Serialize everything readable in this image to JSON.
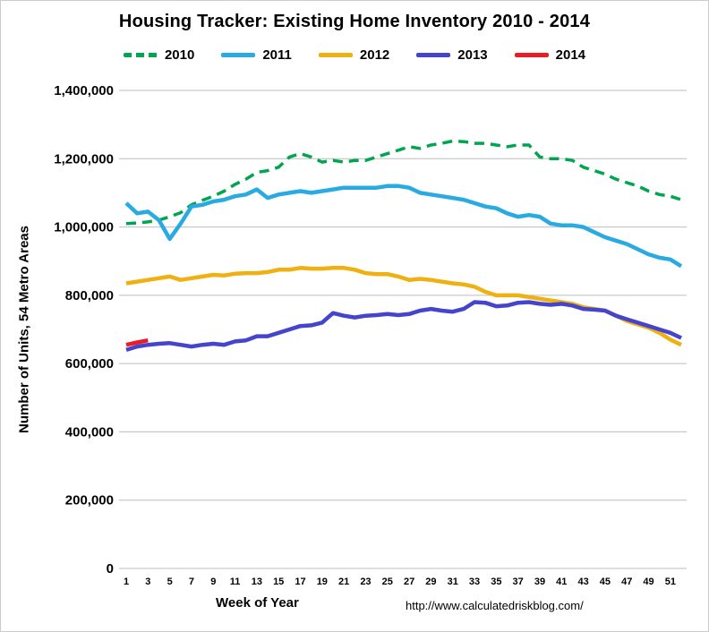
{
  "title": "Housing Tracker: Existing Home Inventory 2010 - 2014",
  "ylabel": "Number of Units, 54 Metro Areas",
  "xlabel": "Week of Year",
  "url": "http://www.calculatedriskblog.com/",
  "chart_data": {
    "type": "line",
    "title": "Housing Tracker: Existing Home Inventory 2010 - 2014",
    "xlabel": "Week of Year",
    "ylabel": "Number of Units, 54 Metro Areas",
    "ylim": [
      0,
      1400000
    ],
    "y_ticks": [
      0,
      200000,
      400000,
      600000,
      800000,
      1000000,
      1200000,
      1400000
    ],
    "x_ticks": [
      1,
      3,
      5,
      7,
      9,
      11,
      13,
      15,
      17,
      19,
      21,
      23,
      25,
      27,
      29,
      31,
      33,
      35,
      37,
      39,
      41,
      43,
      45,
      47,
      49,
      51
    ],
    "grid": "horizontal",
    "legend_position": "top",
    "watermark": "http://www.calculatedriskblog.com/",
    "x": [
      1,
      2,
      3,
      4,
      5,
      6,
      7,
      8,
      9,
      10,
      11,
      12,
      13,
      14,
      15,
      16,
      17,
      18,
      19,
      20,
      21,
      22,
      23,
      24,
      25,
      26,
      27,
      28,
      29,
      30,
      31,
      32,
      33,
      34,
      35,
      36,
      37,
      38,
      39,
      40,
      41,
      42,
      43,
      44,
      45,
      46,
      47,
      48,
      49,
      50,
      51,
      52
    ],
    "series": [
      {
        "name": "2010",
        "color": "#00a550",
        "dash": true,
        "values": [
          1010000,
          1012000,
          1015000,
          1020000,
          1030000,
          1042000,
          1065000,
          1078000,
          1090000,
          1105000,
          1125000,
          1140000,
          1160000,
          1165000,
          1175000,
          1205000,
          1215000,
          1205000,
          1190000,
          1195000,
          1190000,
          1195000,
          1195000,
          1205000,
          1215000,
          1225000,
          1235000,
          1230000,
          1240000,
          1245000,
          1252000,
          1250000,
          1245000,
          1245000,
          1240000,
          1235000,
          1240000,
          1240000,
          1205000,
          1200000,
          1200000,
          1195000,
          1175000,
          1165000,
          1155000,
          1140000,
          1130000,
          1120000,
          1105000,
          1095000,
          1090000,
          1080000
        ]
      },
      {
        "name": "2011",
        "color": "#29abe2",
        "dash": false,
        "values": [
          1070000,
          1040000,
          1045000,
          1020000,
          965000,
          1010000,
          1060000,
          1065000,
          1075000,
          1080000,
          1090000,
          1095000,
          1110000,
          1085000,
          1095000,
          1100000,
          1105000,
          1100000,
          1105000,
          1110000,
          1115000,
          1115000,
          1115000,
          1115000,
          1120000,
          1120000,
          1115000,
          1100000,
          1095000,
          1090000,
          1085000,
          1080000,
          1070000,
          1060000,
          1055000,
          1040000,
          1030000,
          1035000,
          1030000,
          1010000,
          1005000,
          1005000,
          1000000,
          985000,
          970000,
          960000,
          950000,
          935000,
          920000,
          910000,
          905000,
          885000
        ]
      },
      {
        "name": "2012",
        "color": "#eeb111",
        "dash": false,
        "values": [
          835000,
          840000,
          845000,
          850000,
          855000,
          845000,
          850000,
          855000,
          860000,
          858000,
          863000,
          865000,
          865000,
          868000,
          875000,
          875000,
          880000,
          878000,
          878000,
          880000,
          880000,
          875000,
          865000,
          862000,
          862000,
          855000,
          845000,
          848000,
          845000,
          840000,
          835000,
          832000,
          825000,
          810000,
          800000,
          800000,
          800000,
          795000,
          790000,
          785000,
          780000,
          775000,
          765000,
          760000,
          755000,
          740000,
          725000,
          715000,
          705000,
          690000,
          670000,
          655000
        ]
      },
      {
        "name": "2013",
        "color": "#4444cc",
        "dash": false,
        "values": [
          640000,
          650000,
          655000,
          658000,
          660000,
          655000,
          650000,
          655000,
          658000,
          655000,
          665000,
          668000,
          680000,
          680000,
          690000,
          700000,
          710000,
          712000,
          720000,
          748000,
          740000,
          735000,
          740000,
          742000,
          745000,
          742000,
          745000,
          755000,
          760000,
          755000,
          752000,
          760000,
          780000,
          778000,
          768000,
          770000,
          778000,
          780000,
          775000,
          772000,
          775000,
          770000,
          760000,
          758000,
          755000,
          740000,
          730000,
          720000,
          710000,
          700000,
          690000,
          675000
        ]
      },
      {
        "name": "2014",
        "color": "#ed1c24",
        "dash": false,
        "values": [
          655000,
          662000,
          668000
        ]
      }
    ]
  }
}
